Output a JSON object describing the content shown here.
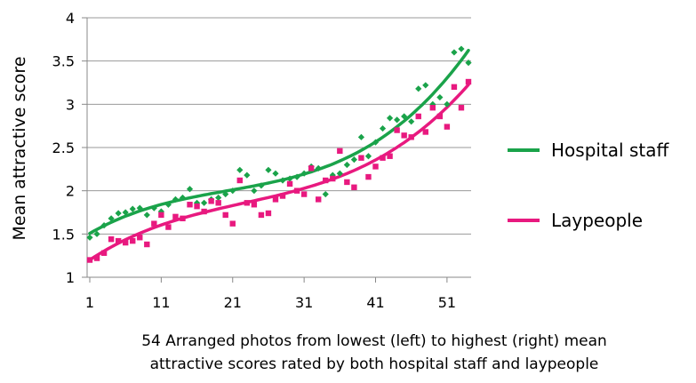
{
  "chart_data": {
    "type": "scatter",
    "title": "",
    "ylabel": "Mean attractive score",
    "xlabel_lines": [
      "54 Arranged photos from lowest (left) to highest (right) mean",
      "attractive scores rated by both hospital staff and laypeople"
    ],
    "xlim": [
      1,
      54
    ],
    "ylim": [
      1,
      4
    ],
    "x_ticks": [
      1,
      11,
      21,
      31,
      41,
      51
    ],
    "y_ticks": [
      1,
      1.5,
      2,
      2.5,
      3,
      3.5,
      4
    ],
    "y_tick_labels": [
      "1",
      "1.5",
      "2",
      "2.5",
      "3",
      "3.5",
      "4"
    ],
    "grid": "horizontal",
    "legend_position": "right",
    "series": [
      {
        "name": "Hospital staff",
        "color": "#1aa34a",
        "marker": "diamond",
        "trend": "cubic",
        "x": [
          1,
          2,
          3,
          4,
          5,
          6,
          7,
          8,
          9,
          10,
          11,
          12,
          13,
          14,
          15,
          16,
          17,
          18,
          19,
          20,
          21,
          22,
          23,
          24,
          25,
          26,
          27,
          28,
          29,
          30,
          31,
          32,
          33,
          34,
          35,
          36,
          37,
          38,
          39,
          40,
          41,
          42,
          43,
          44,
          45,
          46,
          47,
          48,
          49,
          50,
          51,
          52,
          53,
          54
        ],
        "values": [
          1.46,
          1.5,
          1.6,
          1.68,
          1.74,
          1.75,
          1.79,
          1.8,
          1.72,
          1.8,
          1.76,
          1.84,
          1.9,
          1.92,
          2.02,
          1.86,
          1.86,
          1.9,
          1.92,
          1.96,
          2.0,
          2.24,
          2.18,
          2.0,
          2.06,
          2.24,
          2.2,
          2.12,
          2.14,
          2.16,
          2.2,
          2.28,
          2.26,
          1.96,
          2.18,
          2.2,
          2.3,
          2.36,
          2.62,
          2.4,
          2.56,
          2.72,
          2.84,
          2.82,
          2.86,
          2.8,
          3.18,
          3.22,
          3.0,
          3.08,
          3.0,
          3.6,
          3.64,
          3.48
        ]
      },
      {
        "name": "Laypeople",
        "color": "#e8197f",
        "marker": "square",
        "trend": "cubic",
        "x": [
          1,
          2,
          3,
          4,
          5,
          6,
          7,
          8,
          9,
          10,
          11,
          12,
          13,
          14,
          15,
          16,
          17,
          18,
          19,
          20,
          21,
          22,
          23,
          24,
          25,
          26,
          27,
          28,
          29,
          30,
          31,
          32,
          33,
          34,
          35,
          36,
          37,
          38,
          39,
          40,
          41,
          42,
          43,
          44,
          45,
          46,
          47,
          48,
          49,
          50,
          51,
          52,
          53,
          54
        ],
        "values": [
          1.2,
          1.22,
          1.28,
          1.44,
          1.42,
          1.4,
          1.42,
          1.46,
          1.38,
          1.62,
          1.72,
          1.58,
          1.7,
          1.68,
          1.84,
          1.82,
          1.76,
          1.88,
          1.86,
          1.72,
          1.62,
          2.12,
          1.86,
          1.84,
          1.72,
          1.74,
          1.9,
          1.94,
          2.08,
          2.0,
          1.96,
          2.26,
          1.9,
          2.12,
          2.14,
          2.46,
          2.1,
          2.04,
          2.38,
          2.16,
          2.28,
          2.38,
          2.4,
          2.7,
          2.64,
          2.62,
          2.86,
          2.68,
          2.96,
          2.86,
          2.74,
          3.2,
          2.96,
          3.26
        ]
      }
    ]
  }
}
